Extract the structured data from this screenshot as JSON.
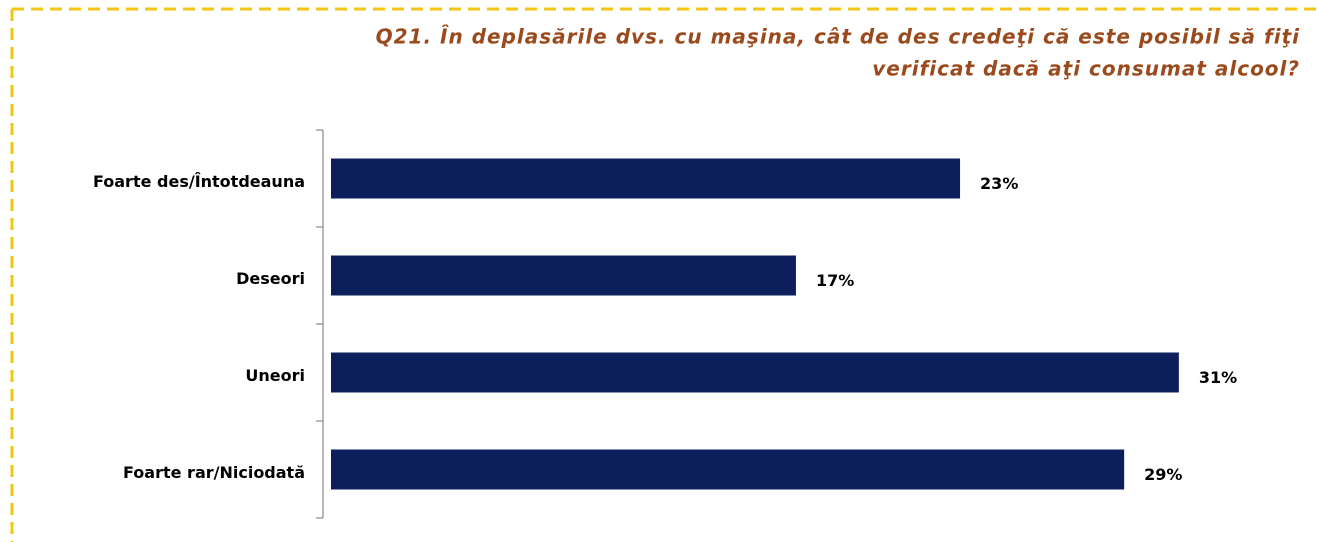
{
  "chart_data": {
    "type": "bar",
    "orientation": "horizontal",
    "title": [
      "Q21. În deplasările dvs. cu maşina, cât de des  credeţi că este posibil să fiţi",
      "verificat dacă aţi consumat alcool?"
    ],
    "categories": [
      "Foarte des/Întotdeauna",
      "Deseori",
      "Uneori",
      "Foarte rar/Niciodată"
    ],
    "values": [
      23,
      17,
      31,
      29
    ],
    "value_labels": [
      "23%",
      "17%",
      "31%",
      "29%"
    ],
    "color": "#0c1f5c"
  }
}
